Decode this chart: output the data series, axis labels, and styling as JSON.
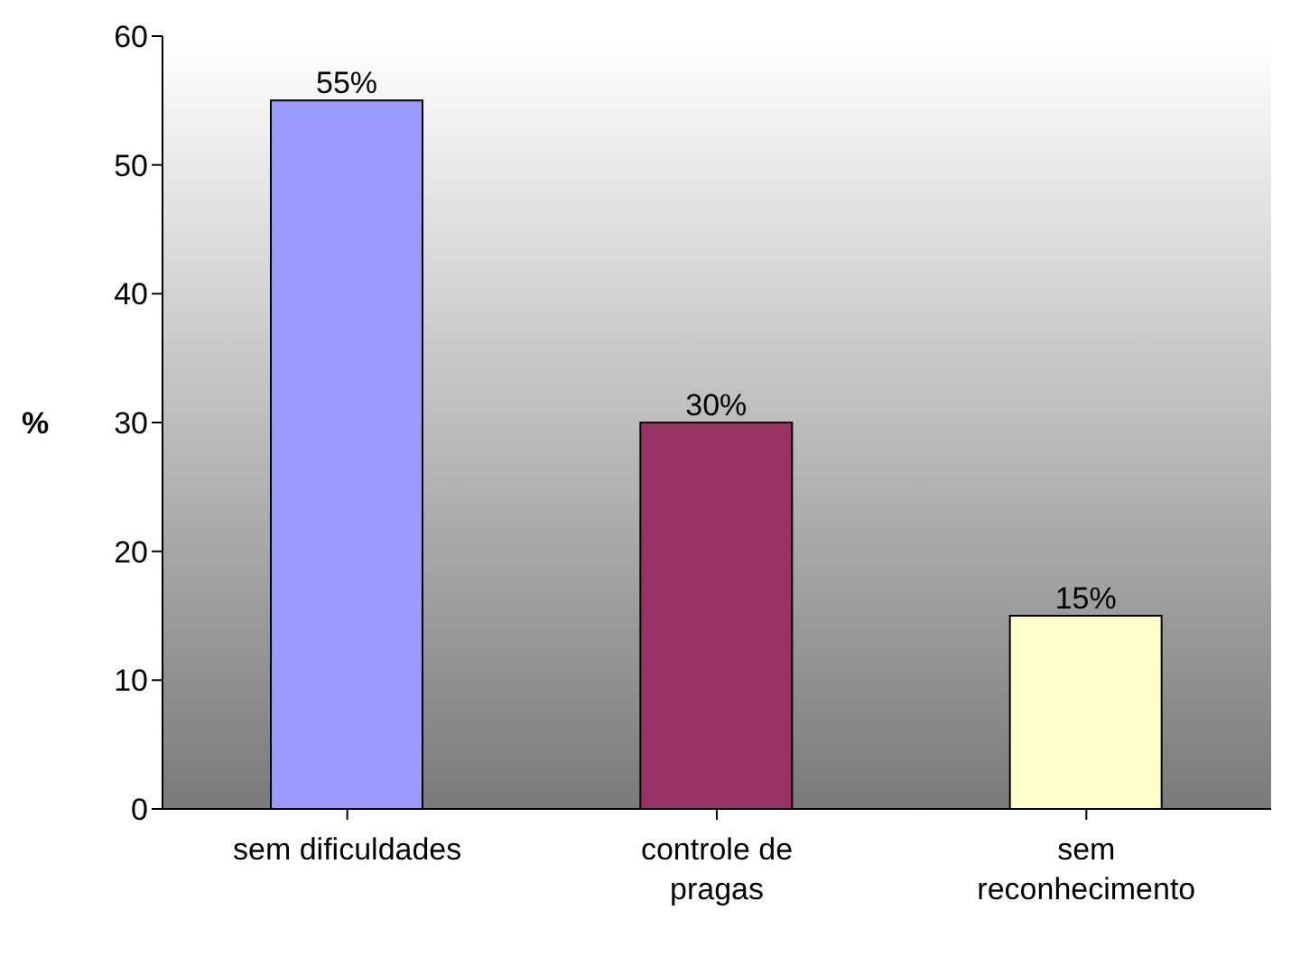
{
  "chart_data": {
    "type": "bar",
    "ylabel": "%",
    "categories": [
      "sem dificuldades",
      "controle de pragas",
      "sem reconhecimento"
    ],
    "values": [
      55,
      30,
      15
    ],
    "colors": [
      "#9999ff",
      "#993366",
      "#ffffcc"
    ],
    "value_labels": [
      "55%",
      "30%",
      "15%"
    ],
    "ylim": [
      0,
      60
    ],
    "yticks": [
      0,
      10,
      20,
      30,
      40,
      50,
      60
    ],
    "grid": false,
    "legend": false
  }
}
